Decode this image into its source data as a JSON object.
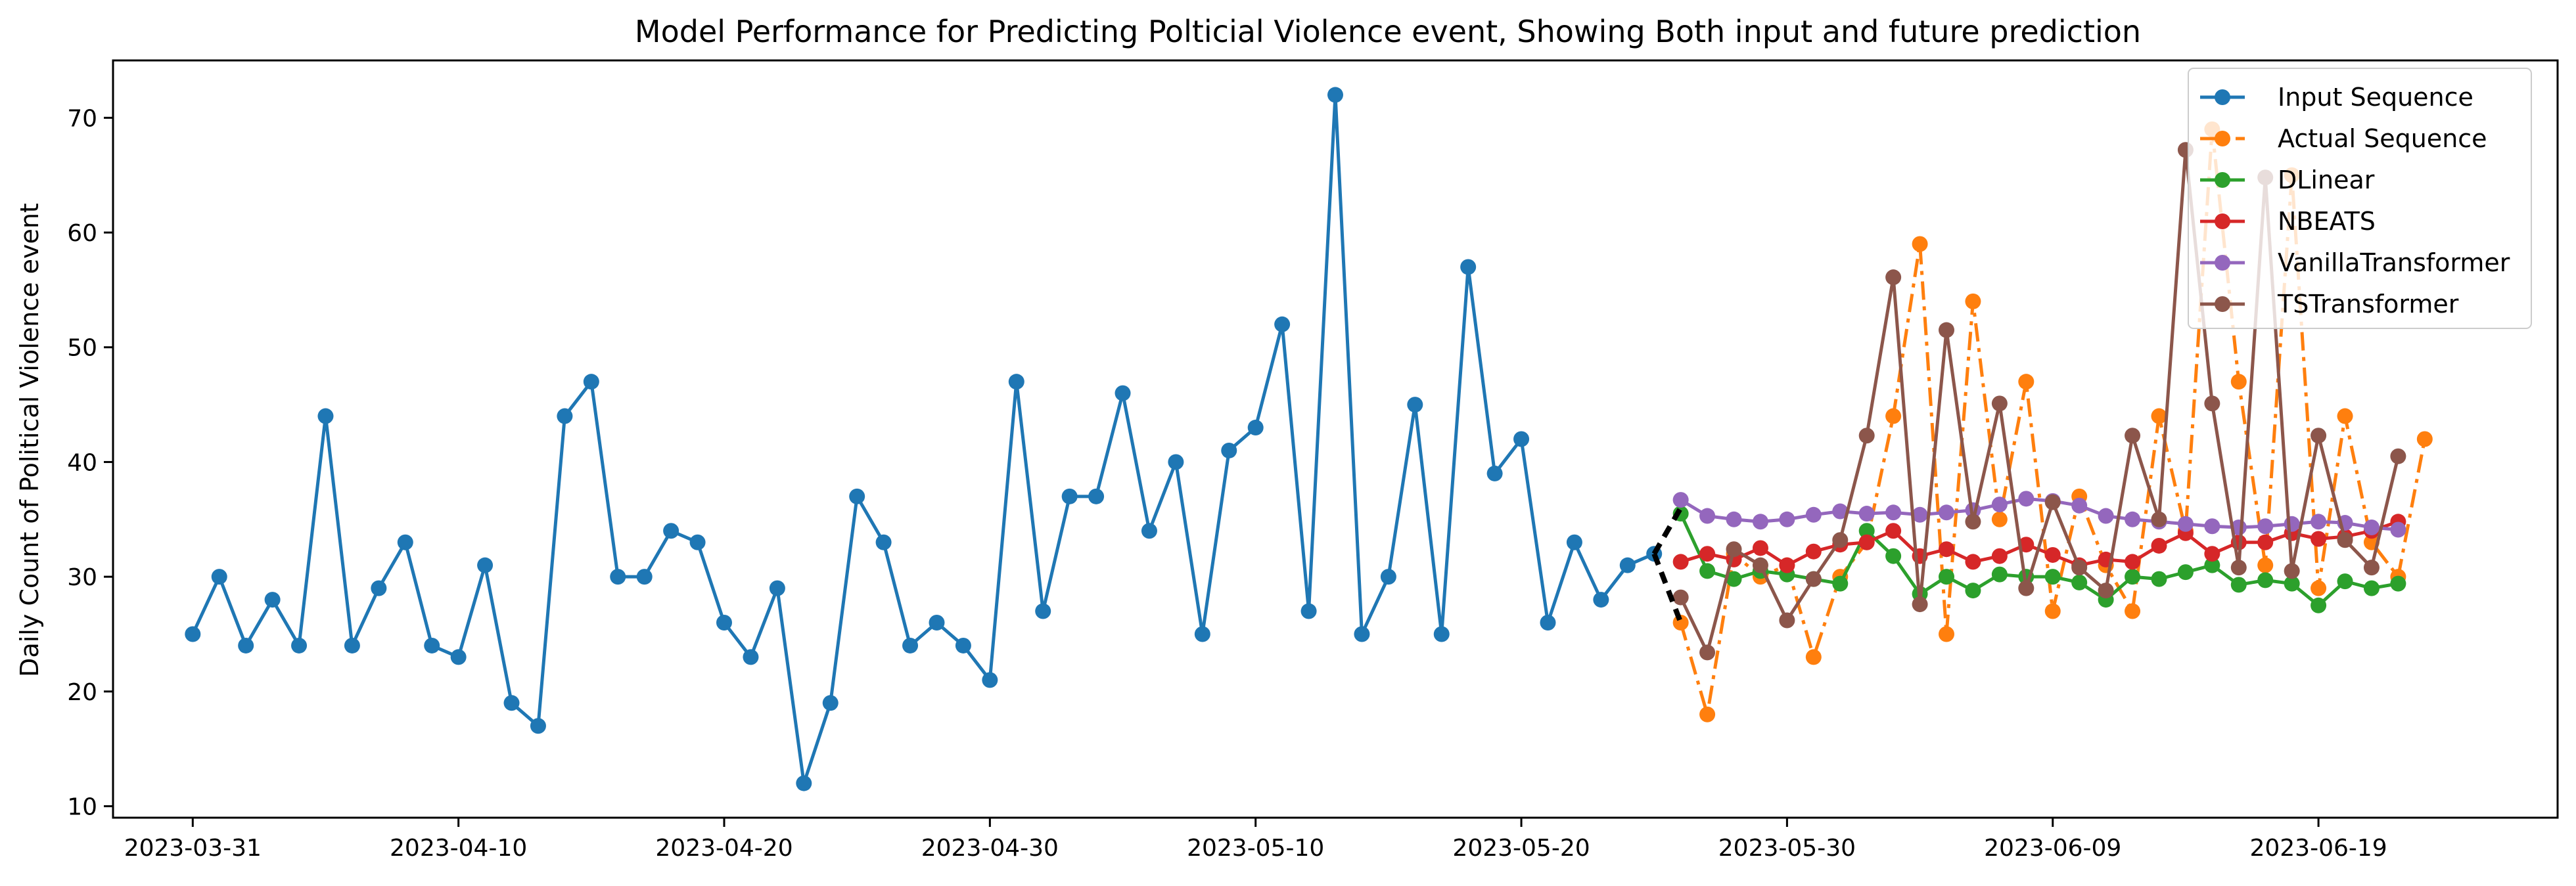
{
  "chart_data": {
    "type": "line",
    "title": "Model Performance for Predicting Polticial Violence event, Showing Both input and future prediction",
    "xlabel": "",
    "ylabel": "Daily Count of Political Violence event",
    "x_type": "date",
    "xlim": [
      "2023-03-28",
      "2023-06-28"
    ],
    "ylim": [
      9,
      75
    ],
    "x_ticks": [
      "2023-03-31",
      "2023-04-10",
      "2023-04-20",
      "2023-04-30",
      "2023-05-10",
      "2023-05-20",
      "2023-05-30",
      "2023-06-09",
      "2023-06-19"
    ],
    "y_ticks": [
      10,
      20,
      30,
      40,
      50,
      60,
      70
    ],
    "grid": false,
    "legend_position": "top-right",
    "series": [
      {
        "name": "Input Sequence",
        "color": "#1f77b4",
        "style": "solid",
        "start": "2023-03-31",
        "values": [
          25,
          30,
          24,
          28,
          24,
          44,
          24,
          29,
          33,
          24,
          23,
          31,
          19,
          17,
          44,
          47,
          30,
          30,
          34,
          33,
          26,
          23,
          29,
          12,
          19,
          37,
          33,
          24,
          26,
          24,
          21,
          47,
          27,
          37,
          37,
          46,
          34,
          40,
          25,
          41,
          43,
          52,
          27,
          72,
          25,
          30,
          45,
          25,
          57,
          39,
          42,
          26,
          33,
          28,
          31,
          32
        ]
      },
      {
        "name": "Actual Sequence",
        "color": "#ff7f0e",
        "style": "dashdot",
        "start": "2023-05-26",
        "values": [
          26,
          18,
          32,
          30,
          31,
          23,
          30,
          33,
          44,
          59,
          25,
          54,
          35,
          47,
          27,
          37,
          31,
          27,
          44,
          34,
          69,
          47,
          31,
          65,
          29,
          44,
          33,
          30,
          42
        ]
      },
      {
        "name": "DLinear",
        "color": "#2ca02c",
        "style": "solid",
        "start": "2023-05-26",
        "values": [
          35.5,
          30.5,
          29.8,
          30.5,
          30.2,
          29.8,
          29.4,
          34.0,
          31.8,
          28.5,
          30.0,
          28.8,
          30.2,
          30.0,
          30.0,
          29.5,
          28.0,
          30.0,
          29.8,
          30.4,
          31.0,
          29.3,
          29.7,
          29.4,
          27.5,
          29.6,
          29.0,
          29.4
        ]
      },
      {
        "name": "NBEATS",
        "color": "#d62728",
        "style": "solid",
        "start": "2023-05-26",
        "values": [
          31.3,
          32.0,
          31.5,
          32.5,
          31.0,
          32.2,
          32.8,
          33.0,
          34.0,
          31.8,
          32.4,
          31.3,
          31.8,
          32.8,
          31.9,
          31.0,
          31.5,
          31.3,
          32.7,
          33.8,
          32.0,
          33.0,
          33.0,
          33.8,
          33.3,
          33.5,
          34.0,
          34.8
        ]
      },
      {
        "name": "VanillaTransformer",
        "color": "#9467bd",
        "style": "solid",
        "start": "2023-05-26",
        "values": [
          36.7,
          35.3,
          35.0,
          34.8,
          35.0,
          35.4,
          35.7,
          35.5,
          35.6,
          35.4,
          35.6,
          35.8,
          36.3,
          36.8,
          36.6,
          36.2,
          35.3,
          35.0,
          34.8,
          34.6,
          34.4,
          34.3,
          34.4,
          34.6,
          34.8,
          34.7,
          34.3,
          34.1
        ]
      },
      {
        "name": "TSTransformer",
        "color": "#8c564b",
        "style": "solid",
        "start": "2023-05-26",
        "values": [
          28.2,
          23.4,
          32.4,
          31.0,
          26.2,
          29.8,
          33.2,
          42.3,
          56.1,
          27.6,
          51.5,
          34.8,
          45.1,
          29.0,
          36.5,
          30.8,
          28.8,
          42.3,
          35.0,
          67.2,
          45.1,
          30.8,
          64.8,
          30.5,
          42.3,
          33.2,
          30.8,
          40.5
        ]
      }
    ],
    "connector": {
      "color": "#000000",
      "style": "dashed",
      "from": [
        "2023-05-25",
        32
      ],
      "to": [
        "2023-05-26",
        26
      ],
      "to_alt": [
        "2023-05-26",
        36
      ]
    }
  }
}
